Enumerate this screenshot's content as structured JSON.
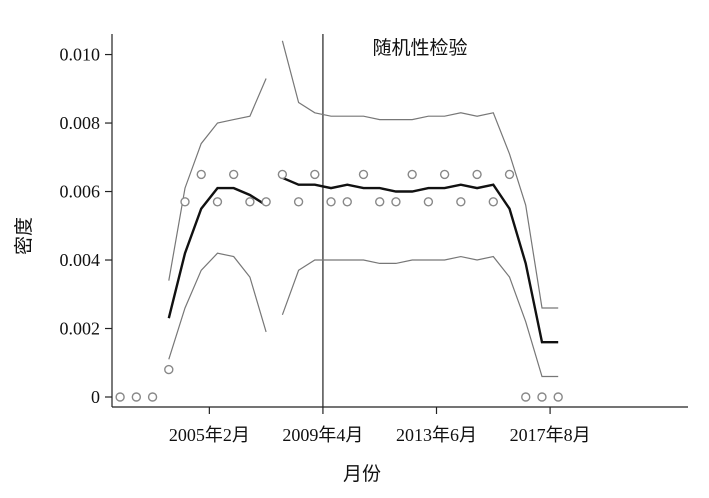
{
  "chart_data": {
    "type": "line",
    "title": "随机性检验",
    "xlabel": "月份",
    "ylabel": "密度",
    "x_ticks": [
      {
        "x": 6,
        "label": "2005年2月"
      },
      {
        "x": 13,
        "label": "2009年4月"
      },
      {
        "x": 20,
        "label": "2013年6月"
      },
      {
        "x": 27,
        "label": "2017年8月"
      }
    ],
    "y_ticks": [
      {
        "y": 0,
        "label": "0"
      },
      {
        "y": 0.002,
        "label": "0.002"
      },
      {
        "y": 0.004,
        "label": "0.004"
      },
      {
        "y": 0.006,
        "label": "0.006"
      },
      {
        "y": 0.008,
        "label": "0.008"
      },
      {
        "y": 0.01,
        "label": "0.010"
      }
    ],
    "xlim": [
      -0.5,
      35
    ],
    "ylim": [
      0,
      0.0106
    ],
    "breakpoint": 13,
    "points": [
      [
        0,
        0
      ],
      [
        1,
        0
      ],
      [
        2,
        0
      ],
      [
        3,
        0.0008
      ],
      [
        4,
        0.0057
      ],
      [
        5,
        0.0065
      ],
      [
        6,
        0.0057
      ],
      [
        7,
        0.0065
      ],
      [
        8,
        0.0057
      ],
      [
        9,
        0.0057
      ],
      [
        10,
        0.0065
      ],
      [
        11,
        0.0057
      ],
      [
        12,
        0.0065
      ],
      [
        13,
        0.0057
      ],
      [
        14,
        0.0057
      ],
      [
        15,
        0.0065
      ],
      [
        16,
        0.0057
      ],
      [
        17,
        0.0057
      ],
      [
        18,
        0.0065
      ],
      [
        19,
        0.0057
      ],
      [
        20,
        0.0065
      ],
      [
        21,
        0.0057
      ],
      [
        22,
        0.0065
      ],
      [
        23,
        0.0057
      ],
      [
        24,
        0.0065
      ],
      [
        25,
        0
      ],
      [
        26,
        0
      ],
      [
        27,
        0
      ]
    ],
    "segments": [
      {
        "name": "",
        "x": [
          3,
          4,
          5,
          6,
          7,
          8,
          9
        ],
        "mean": [
          0.0023,
          0.0042,
          0.0055,
          0.0061,
          0.0061,
          0.0059,
          0.0056
        ],
        "upper": [
          0.0034,
          0.0061,
          0.0074,
          0.008,
          0.0081,
          0.0082,
          0.0093
        ],
        "lower": [
          0.0011,
          0.0026,
          0.0037,
          0.0042,
          0.0041,
          0.0035,
          0.0019
        ]
      },
      {
        "name": "",
        "x": [
          10,
          11,
          12,
          13,
          14,
          15,
          16,
          17,
          18,
          19,
          20,
          21,
          22,
          23,
          24,
          25,
          26,
          27
        ],
        "mean": [
          0.0064,
          0.0062,
          0.0062,
          0.0061,
          0.0062,
          0.0061,
          0.0061,
          0.006,
          0.006,
          0.0061,
          0.0061,
          0.0062,
          0.0061,
          0.0062,
          0.0055,
          0.0039,
          0.0016,
          0.0016
        ],
        "upper": [
          0.0104,
          0.0086,
          0.0083,
          0.0082,
          0.0082,
          0.0082,
          0.0081,
          0.0081,
          0.0081,
          0.0082,
          0.0082,
          0.0083,
          0.0082,
          0.0083,
          0.0071,
          0.0056,
          0.0026,
          0.0026
        ],
        "lower": [
          0.0024,
          0.0037,
          0.004,
          0.004,
          0.004,
          0.004,
          0.0039,
          0.0039,
          0.004,
          0.004,
          0.004,
          0.0041,
          0.004,
          0.0041,
          0.0035,
          0.0022,
          0.0006,
          0.0006
        ]
      }
    ]
  }
}
